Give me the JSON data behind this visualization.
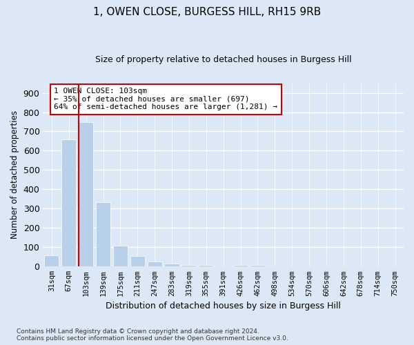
{
  "title": "1, OWEN CLOSE, BURGESS HILL, RH15 9RB",
  "subtitle": "Size of property relative to detached houses in Burgess Hill",
  "xlabel": "Distribution of detached houses by size in Burgess Hill",
  "ylabel": "Number of detached properties",
  "categories": [
    "31sqm",
    "67sqm",
    "103sqm",
    "139sqm",
    "175sqm",
    "211sqm",
    "247sqm",
    "283sqm",
    "319sqm",
    "355sqm",
    "391sqm",
    "426sqm",
    "462sqm",
    "498sqm",
    "534sqm",
    "570sqm",
    "606sqm",
    "642sqm",
    "678sqm",
    "714sqm",
    "750sqm"
  ],
  "bar_heights": [
    57,
    660,
    750,
    335,
    110,
    55,
    25,
    15,
    10,
    10,
    0,
    10,
    10,
    0,
    0,
    0,
    0,
    0,
    0,
    0,
    0
  ],
  "bar_color": "#b8d0ea",
  "vline_color": "#cc0000",
  "vline_bar_index": 2,
  "annotation_text": "1 OWEN CLOSE: 103sqm\n← 35% of detached houses are smaller (697)\n64% of semi-detached houses are larger (1,281) →",
  "annotation_box_edgecolor": "#cc0000",
  "ylim": [
    0,
    950
  ],
  "yticks": [
    0,
    100,
    200,
    300,
    400,
    500,
    600,
    700,
    800,
    900
  ],
  "bg_color": "#dce8f5",
  "plot_bg_color": "#dce8f5",
  "grid_color": "#ffffff",
  "footer": "Contains HM Land Registry data © Crown copyright and database right 2024.\nContains public sector information licensed under the Open Government Licence v3.0."
}
